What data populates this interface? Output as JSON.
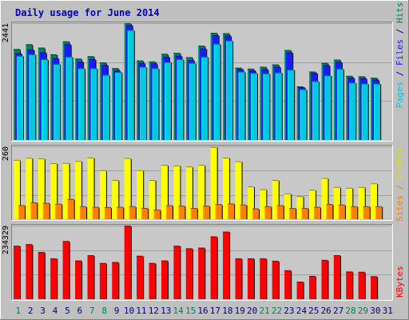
{
  "chart_data": [
    {
      "type": "bar",
      "title": "Daily usage for June 2014",
      "ylabel_parts": [
        {
          "text": "Pages",
          "color": "#00c8e0"
        },
        {
          "text": " / ",
          "color": "#0000b0"
        },
        {
          "text": "Files",
          "color": "#1a1aff"
        },
        {
          "text": " / ",
          "color": "#0000b0"
        },
        {
          "text": "Hits",
          "color": "#008060"
        }
      ],
      "y_tick_label": "2441",
      "ymax": 2441,
      "categories": [
        "1",
        "2",
        "3",
        "4",
        "5",
        "6",
        "7",
        "8",
        "9",
        "10",
        "11",
        "12",
        "13",
        "14",
        "15",
        "16",
        "17",
        "18",
        "19",
        "20",
        "21",
        "22",
        "23",
        "24",
        "25",
        "26",
        "27",
        "28",
        "29",
        "30"
      ],
      "series": [
        {
          "name": "Hits",
          "color": "#008060",
          "values": [
            1900,
            2000,
            1930,
            1790,
            2060,
            1700,
            1750,
            1620,
            1500,
            2441,
            1660,
            1640,
            1800,
            1820,
            1730,
            1970,
            2240,
            2230,
            1510,
            1490,
            1530,
            1580,
            1880,
            1120,
            1430,
            1610,
            1680,
            1340,
            1330,
            1300
          ]
        },
        {
          "name": "Files",
          "color": "#1a1aff",
          "values": [
            1810,
            1890,
            1830,
            1710,
            2000,
            1640,
            1690,
            1570,
            1450,
            2400,
            1610,
            1600,
            1740,
            1760,
            1670,
            1910,
            2190,
            2180,
            1480,
            1450,
            1480,
            1530,
            1830,
            1100,
            1400,
            1560,
            1630,
            1300,
            1290,
            1260
          ]
        },
        {
          "name": "Pages",
          "color": "#00c8e0",
          "values": [
            1760,
            1790,
            1690,
            1590,
            1740,
            1500,
            1500,
            1360,
            1420,
            2300,
            1530,
            1500,
            1630,
            1690,
            1610,
            1740,
            2010,
            2080,
            1430,
            1400,
            1390,
            1410,
            1470,
            1060,
            1230,
            1350,
            1490,
            1200,
            1180,
            1180
          ]
        }
      ]
    },
    {
      "type": "bar",
      "ylabel_parts": [
        {
          "text": "Sites",
          "color": "#ff8000"
        },
        {
          "text": " / ",
          "color": "#c0a000"
        },
        {
          "text": "Visits",
          "color": "#e0e000"
        }
      ],
      "y_tick_label": "260",
      "ymax": 260,
      "categories": [
        "1",
        "2",
        "3",
        "4",
        "5",
        "6",
        "7",
        "8",
        "9",
        "10",
        "11",
        "12",
        "13",
        "14",
        "15",
        "16",
        "17",
        "18",
        "19",
        "20",
        "21",
        "22",
        "23",
        "24",
        "25",
        "26",
        "27",
        "28",
        "29",
        "30"
      ],
      "series": [
        {
          "name": "Visits",
          "color": "#ffff00",
          "values": [
            212,
            219,
            217,
            200,
            201,
            208,
            220,
            175,
            140,
            218,
            175,
            140,
            194,
            192,
            188,
            194,
            258,
            220,
            207,
            117,
            107,
            140,
            92,
            82,
            105,
            147,
            115,
            112,
            115,
            128
          ]
        },
        {
          "name": "Sites",
          "color": "#ff8000",
          "values": [
            50,
            60,
            58,
            55,
            72,
            46,
            44,
            43,
            44,
            46,
            40,
            34,
            50,
            48,
            40,
            48,
            54,
            56,
            52,
            38,
            46,
            50,
            40,
            40,
            44,
            54,
            52,
            46,
            46,
            46
          ]
        }
      ]
    },
    {
      "type": "bar",
      "ylabel_parts": [
        {
          "text": "KBytes",
          "color": "#ff0000"
        }
      ],
      "y_tick_label": "234329",
      "ymax": 234329,
      "categories": [
        "1",
        "2",
        "3",
        "4",
        "5",
        "6",
        "7",
        "8",
        "9",
        "10",
        "11",
        "12",
        "13",
        "14",
        "15",
        "16",
        "17",
        "18",
        "19",
        "20",
        "21",
        "22",
        "23",
        "24",
        "25",
        "26",
        "27",
        "28",
        "29",
        "30"
      ],
      "series": [
        {
          "name": "KBytes",
          "color": "#ff0000",
          "values": [
            170000,
            175000,
            150000,
            130000,
            185000,
            123000,
            140000,
            115000,
            118000,
            234329,
            138000,
            115000,
            123000,
            170000,
            162000,
            164000,
            200000,
            215000,
            130000,
            130000,
            130000,
            122000,
            92000,
            56000,
            74000,
            125000,
            140000,
            88000,
            87000,
            73000
          ]
        }
      ]
    }
  ],
  "x_axis": {
    "labels": [
      "1",
      "2",
      "3",
      "4",
      "5",
      "6",
      "7",
      "8",
      "9",
      "10",
      "11",
      "12",
      "13",
      "14",
      "15",
      "16",
      "17",
      "18",
      "19",
      "20",
      "21",
      "22",
      "23",
      "24",
      "25",
      "26",
      "27",
      "28",
      "29",
      "30",
      "31"
    ],
    "weekend_labels": [
      "1",
      "7",
      "8",
      "14",
      "15",
      "21",
      "22",
      "28",
      "29"
    ],
    "weekday_color": "#000080",
    "weekend_color": "#00805a"
  },
  "colors": {
    "background": "#c0c0c0",
    "panel": "#c8c8c8",
    "title": "#0000c0"
  }
}
